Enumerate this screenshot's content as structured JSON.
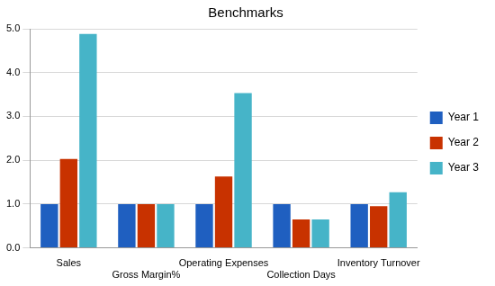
{
  "chart_data": {
    "type": "bar",
    "title": "Benchmarks",
    "categories": [
      "Sales",
      "Gross Margin%",
      "Operating Expenses",
      "Collection Days",
      "Inventory Turnover"
    ],
    "series": [
      {
        "name": "Year 1",
        "color": "#1f5fc0",
        "values": [
          1.0,
          1.0,
          1.0,
          1.0,
          1.0
        ]
      },
      {
        "name": "Year 2",
        "color": "#c83200",
        "values": [
          2.03,
          1.0,
          1.63,
          0.65,
          0.95
        ]
      },
      {
        "name": "Year 3",
        "color": "#46b4c8",
        "values": [
          4.88,
          1.0,
          3.53,
          0.65,
          1.27
        ]
      }
    ],
    "ylim": [
      0,
      5
    ],
    "yticks": [
      {
        "value": 0,
        "label": "0.0"
      },
      {
        "value": 1,
        "label": "1.0"
      },
      {
        "value": 2,
        "label": "2.0"
      },
      {
        "value": 3,
        "label": "3.0"
      },
      {
        "value": 4,
        "label": "4.0"
      },
      {
        "value": 5,
        "label": "5.0"
      }
    ],
    "grid": true,
    "legend": "right"
  }
}
